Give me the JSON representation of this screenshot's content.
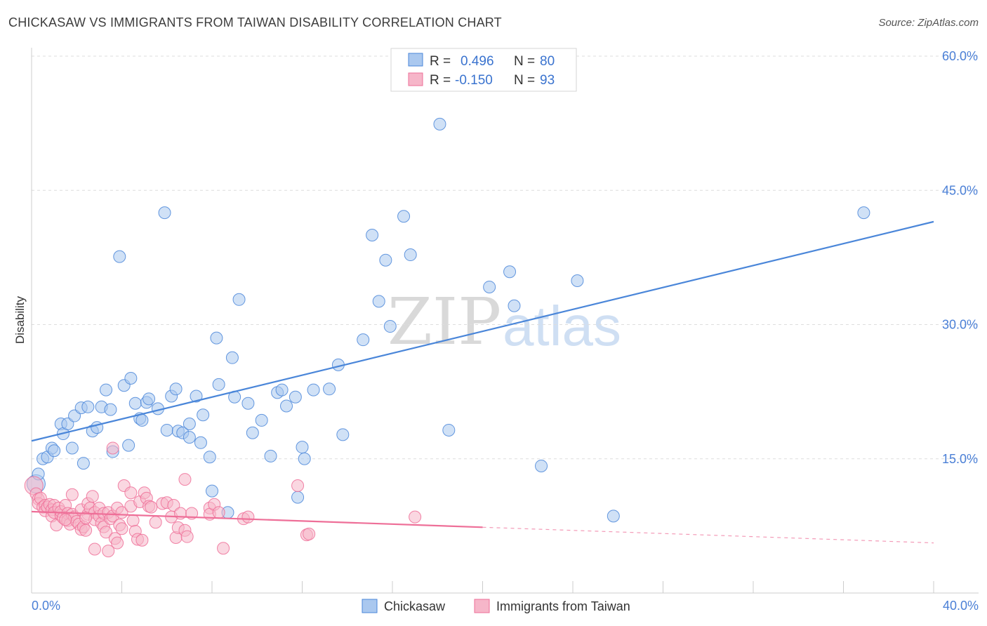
{
  "header": {
    "title": "CHICKASAW VS IMMIGRANTS FROM TAIWAN DISABILITY CORRELATION CHART",
    "source": "Source: ZipAtlas.com"
  },
  "watermark": {
    "zip": "ZIP",
    "atlas": "atlas"
  },
  "colors": {
    "blue": "#4a86d9",
    "blue_fill": "#aac8ef",
    "pink": "#ee6f98",
    "pink_fill": "#f6b6c9",
    "grid": "#dddddd",
    "axis_text": "#4a7fd6"
  },
  "legend": {
    "rows": [
      {
        "r_label": "R =",
        "r_value": "0.496",
        "n_label": "N =",
        "n_value": "80"
      },
      {
        "r_label": "R =",
        "r_value": "-0.150",
        "n_label": "N =",
        "n_value": "93"
      }
    ]
  },
  "chart_data": {
    "type": "scatter",
    "title": "CHICKASAW VS IMMIGRANTS FROM TAIWAN DISABILITY CORRELATION CHART",
    "xlabel": "",
    "ylabel": "Disability",
    "xlim": [
      0,
      40
    ],
    "ylim": [
      0,
      60
    ],
    "x_tick_labels": [
      "0.0%",
      "40.0%"
    ],
    "y_tick_labels": [
      "15.0%",
      "30.0%",
      "45.0%",
      "60.0%"
    ],
    "y_ticks": [
      15,
      30,
      45,
      60
    ],
    "x_ticks": [
      0,
      4,
      8,
      12,
      16,
      20,
      24,
      28,
      32,
      36,
      40
    ],
    "legend_position": "top-center",
    "series": [
      {
        "name": "Chickasaw",
        "color": "#4a86d9",
        "r": 0.496,
        "n": 80,
        "trend": {
          "x": [
            0,
            40
          ],
          "y": [
            17.0,
            41.5
          ],
          "dashed_from": null
        },
        "points": [
          [
            0.2,
            12.2
          ],
          [
            0.3,
            13.3
          ],
          [
            0.5,
            15.0
          ],
          [
            0.7,
            15.2
          ],
          [
            0.9,
            16.2
          ],
          [
            1.0,
            15.9
          ],
          [
            1.3,
            18.9
          ],
          [
            1.4,
            17.8
          ],
          [
            1.6,
            18.9
          ],
          [
            1.8,
            16.2
          ],
          [
            1.9,
            19.8
          ],
          [
            2.2,
            20.7
          ],
          [
            2.3,
            14.5
          ],
          [
            2.5,
            20.8
          ],
          [
            2.7,
            18.1
          ],
          [
            2.9,
            18.5
          ],
          [
            3.1,
            20.8
          ],
          [
            3.3,
            22.7
          ],
          [
            3.5,
            20.5
          ],
          [
            3.6,
            15.8
          ],
          [
            3.9,
            37.6
          ],
          [
            4.1,
            23.2
          ],
          [
            4.3,
            16.5
          ],
          [
            4.4,
            24.0
          ],
          [
            4.6,
            21.2
          ],
          [
            4.8,
            19.5
          ],
          [
            4.9,
            19.3
          ],
          [
            5.1,
            21.3
          ],
          [
            5.2,
            21.7
          ],
          [
            5.6,
            20.6
          ],
          [
            5.9,
            42.5
          ],
          [
            6.0,
            18.2
          ],
          [
            6.2,
            22.0
          ],
          [
            6.4,
            22.8
          ],
          [
            6.5,
            18.1
          ],
          [
            6.7,
            17.9
          ],
          [
            7.0,
            17.4
          ],
          [
            7.0,
            18.9
          ],
          [
            7.3,
            22.0
          ],
          [
            7.5,
            16.8
          ],
          [
            7.6,
            19.9
          ],
          [
            7.9,
            15.2
          ],
          [
            8.0,
            11.4
          ],
          [
            8.2,
            28.5
          ],
          [
            8.3,
            23.3
          ],
          [
            8.7,
            9.0
          ],
          [
            8.9,
            26.3
          ],
          [
            9.0,
            21.9
          ],
          [
            9.2,
            32.8
          ],
          [
            9.6,
            21.2
          ],
          [
            9.8,
            17.9
          ],
          [
            10.2,
            19.3
          ],
          [
            10.6,
            15.3
          ],
          [
            10.9,
            22.4
          ],
          [
            11.1,
            22.7
          ],
          [
            11.3,
            20.9
          ],
          [
            11.7,
            21.9
          ],
          [
            11.8,
            10.7
          ],
          [
            12.0,
            16.3
          ],
          [
            12.1,
            15.0
          ],
          [
            12.5,
            22.7
          ],
          [
            13.2,
            22.8
          ],
          [
            13.6,
            25.5
          ],
          [
            13.8,
            17.7
          ],
          [
            14.7,
            28.3
          ],
          [
            15.1,
            40.0
          ],
          [
            15.4,
            32.6
          ],
          [
            15.7,
            37.2
          ],
          [
            15.9,
            29.8
          ],
          [
            16.5,
            42.1
          ],
          [
            16.8,
            37.8
          ],
          [
            18.1,
            52.4
          ],
          [
            18.5,
            18.2
          ],
          [
            20.3,
            34.2
          ],
          [
            21.2,
            35.9
          ],
          [
            21.4,
            32.1
          ],
          [
            22.6,
            14.2
          ],
          [
            24.2,
            34.9
          ],
          [
            25.8,
            8.6
          ],
          [
            36.9,
            42.5
          ]
        ]
      },
      {
        "name": "Immigrants from Taiwan",
        "color": "#ee6f98",
        "r": -0.15,
        "n": 93,
        "trend": {
          "x": [
            0,
            40
          ],
          "y": [
            9.1,
            5.6
          ],
          "dashed_from": 20
        },
        "points": [
          [
            0.1,
            12.0
          ],
          [
            0.2,
            11.1
          ],
          [
            0.3,
            10.5
          ],
          [
            0.3,
            10.0
          ],
          [
            0.4,
            10.6
          ],
          [
            0.5,
            9.6
          ],
          [
            0.6,
            9.8
          ],
          [
            0.6,
            9.2
          ],
          [
            0.7,
            9.6
          ],
          [
            0.8,
            9.9
          ],
          [
            0.9,
            9.3
          ],
          [
            0.9,
            8.6
          ],
          [
            1.0,
            9.8
          ],
          [
            1.0,
            9.0
          ],
          [
            1.1,
            7.6
          ],
          [
            1.2,
            9.5
          ],
          [
            1.3,
            8.7
          ],
          [
            1.3,
            9.1
          ],
          [
            1.4,
            8.4
          ],
          [
            1.5,
            9.8
          ],
          [
            1.6,
            8.9
          ],
          [
            1.6,
            8.1
          ],
          [
            1.7,
            7.7
          ],
          [
            1.8,
            8.8
          ],
          [
            1.8,
            11.0
          ],
          [
            1.9,
            8.5
          ],
          [
            2.0,
            8.0
          ],
          [
            2.1,
            7.7
          ],
          [
            2.2,
            7.1
          ],
          [
            2.2,
            9.3
          ],
          [
            2.3,
            7.4
          ],
          [
            2.4,
            7.0
          ],
          [
            2.5,
            8.8
          ],
          [
            2.5,
            10.0
          ],
          [
            2.6,
            9.5
          ],
          [
            2.7,
            10.8
          ],
          [
            2.8,
            9.0
          ],
          [
            2.8,
            8.2
          ],
          [
            2.8,
            4.9
          ],
          [
            3.0,
            8.6
          ],
          [
            3.0,
            9.5
          ],
          [
            3.1,
            7.8
          ],
          [
            3.2,
            7.4
          ],
          [
            3.2,
            8.9
          ],
          [
            3.3,
            6.8
          ],
          [
            3.4,
            9.0
          ],
          [
            3.4,
            4.7
          ],
          [
            3.5,
            8.3
          ],
          [
            3.6,
            16.2
          ],
          [
            3.6,
            8.6
          ],
          [
            3.7,
            6.1
          ],
          [
            3.8,
            5.6
          ],
          [
            3.8,
            9.5
          ],
          [
            3.9,
            7.6
          ],
          [
            4.0,
            9.0
          ],
          [
            4.0,
            7.2
          ],
          [
            4.1,
            12.0
          ],
          [
            4.4,
            11.2
          ],
          [
            4.4,
            9.7
          ],
          [
            4.5,
            8.1
          ],
          [
            4.6,
            6.9
          ],
          [
            4.7,
            6.0
          ],
          [
            4.8,
            10.2
          ],
          [
            4.9,
            5.9
          ],
          [
            5.0,
            11.2
          ],
          [
            5.1,
            10.6
          ],
          [
            5.2,
            9.7
          ],
          [
            5.5,
            7.9
          ],
          [
            5.8,
            10.0
          ],
          [
            6.0,
            10.1
          ],
          [
            6.2,
            8.5
          ],
          [
            6.3,
            9.8
          ],
          [
            6.4,
            6.2
          ],
          [
            6.5,
            7.3
          ],
          [
            6.6,
            8.9
          ],
          [
            6.8,
            7.0
          ],
          [
            6.8,
            12.7
          ],
          [
            6.9,
            6.3
          ],
          [
            7.1,
            8.9
          ],
          [
            7.9,
            9.5
          ],
          [
            7.9,
            8.8
          ],
          [
            8.1,
            9.9
          ],
          [
            8.3,
            9.0
          ],
          [
            8.5,
            5.0
          ],
          [
            9.4,
            8.3
          ],
          [
            9.6,
            8.5
          ],
          [
            11.8,
            12.0
          ],
          [
            12.2,
            6.5
          ],
          [
            12.3,
            6.6
          ],
          [
            17.0,
            8.5
          ],
          [
            5.3,
            9.6
          ],
          [
            2.4,
            8.4
          ],
          [
            1.5,
            8.2
          ]
        ]
      }
    ]
  },
  "bottom_legend": {
    "items": [
      {
        "label": "Chickasaw"
      },
      {
        "label": "Immigrants from Taiwan"
      }
    ]
  }
}
